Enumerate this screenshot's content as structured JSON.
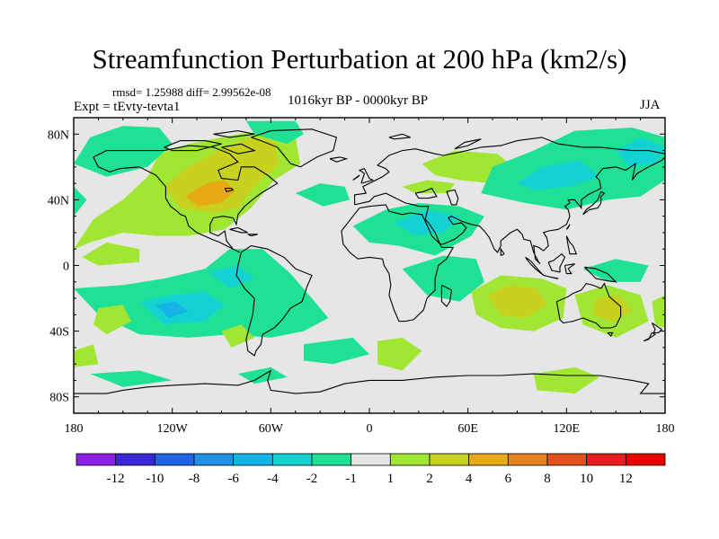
{
  "title": "Streamfunction Perturbation at 200 hPa (km2/s)",
  "stats": "rmsd= 1.25988 diff= 2.99562e-08",
  "experiment": "Expt = tEvty-tevta1",
  "period": "1016kyr BP - 0000kyr BP",
  "season": "JJA",
  "chart_data": {
    "type": "heatmap",
    "title": "Streamfunction Perturbation at 200 hPa (km2/s)",
    "variable": "200 hPa streamfunction perturbation",
    "units": "km2/s",
    "x_range": [
      -180,
      180
    ],
    "y_range": [
      -90,
      90
    ],
    "x_ticks": [
      {
        "value": -180,
        "label": "180"
      },
      {
        "value": -120,
        "label": "120W"
      },
      {
        "value": -60,
        "label": "60W"
      },
      {
        "value": 0,
        "label": "0"
      },
      {
        "value": 60,
        "label": "60E"
      },
      {
        "value": 120,
        "label": "120E"
      },
      {
        "value": 180,
        "label": "180"
      }
    ],
    "y_ticks": [
      {
        "value": 80,
        "label": "80N"
      },
      {
        "value": 40,
        "label": "40N"
      },
      {
        "value": 0,
        "label": "0"
      },
      {
        "value": -40,
        "label": "40S"
      },
      {
        "value": -80,
        "label": "80S"
      }
    ],
    "colorbar": {
      "labels": [
        "-12",
        "-10",
        "-8",
        "-6",
        "-4",
        "-2",
        "-1",
        "1",
        "2",
        "4",
        "6",
        "8",
        "10",
        "12"
      ],
      "colors": [
        "#8c1ee6",
        "#3a28d8",
        "#1e64e6",
        "#1e90e6",
        "#14b4e6",
        "#14d2d2",
        "#1ee196",
        "#e6e6e6",
        "#a0e632",
        "#c8d21e",
        "#e6aa14",
        "#e6821e",
        "#e6501e",
        "#e61e1e",
        "#e60000"
      ]
    },
    "regions": [
      {
        "name": "north-america-positive",
        "level": 2,
        "lon": -100,
        "lat": 50
      },
      {
        "name": "north-america-core",
        "level": 6,
        "lon": -95,
        "lat": 45
      },
      {
        "name": "greenland-positive",
        "level": 4,
        "lon": -65,
        "lat": 70
      },
      {
        "name": "arctic-pacific-negative",
        "level": -1,
        "lon": -160,
        "lat": 70
      },
      {
        "name": "east-pacific-positive",
        "level": 2,
        "lon": -150,
        "lat": 15
      },
      {
        "name": "south-america-negative",
        "level": -2,
        "lon": -95,
        "lat": -20
      },
      {
        "name": "southeast-pacific-negative",
        "level": -4,
        "lon": -120,
        "lat": -30
      },
      {
        "name": "atlantic-north-negative",
        "level": -1,
        "lon": -15,
        "lat": 45
      },
      {
        "name": "north-africa-negative",
        "level": -2,
        "lon": 35,
        "lat": 30
      },
      {
        "name": "central-asia-positive",
        "level": 2,
        "lon": 55,
        "lat": 55
      },
      {
        "name": "siberia-negative",
        "level": -2,
        "lon": 115,
        "lat": 60
      },
      {
        "name": "australia-positive",
        "level": 4,
        "lon": 95,
        "lat": -20
      },
      {
        "name": "west-indian-ocean-negative",
        "level": -1,
        "lon": 45,
        "lat": -5
      },
      {
        "name": "south-pacific-positive",
        "level": 2,
        "lon": 150,
        "lat": -30
      },
      {
        "name": "southern-ocean-positive",
        "level": 2,
        "lon": 15,
        "lat": -55
      },
      {
        "name": "antarctic-pacific-positive",
        "level": 2,
        "lon": 120,
        "lat": -75
      }
    ]
  }
}
